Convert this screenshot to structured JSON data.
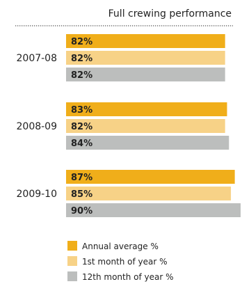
{
  "chart_data": {
    "type": "bar",
    "orientation": "horizontal",
    "title": "Full crewing performance",
    "categories": [
      "2007-08",
      "2008-09",
      "2009-10"
    ],
    "series": [
      {
        "name": "Annual average %",
        "values": [
          82,
          83,
          87
        ],
        "labels": [
          "82%",
          "83%",
          "87%"
        ],
        "color": "#f0ae1a"
      },
      {
        "name": "1st month of year %",
        "values": [
          82,
          82,
          85
        ],
        "labels": [
          "82%",
          "82%",
          "85%"
        ],
        "color": "#f7d287"
      },
      {
        "name": "12th month of year %",
        "values": [
          82,
          84,
          90
        ],
        "labels": [
          "82%",
          "84%",
          "90%"
        ],
        "color": "#bcbebd"
      }
    ],
    "xlim": [
      0,
      90
    ],
    "grid": false,
    "legend_position": "bottom"
  }
}
